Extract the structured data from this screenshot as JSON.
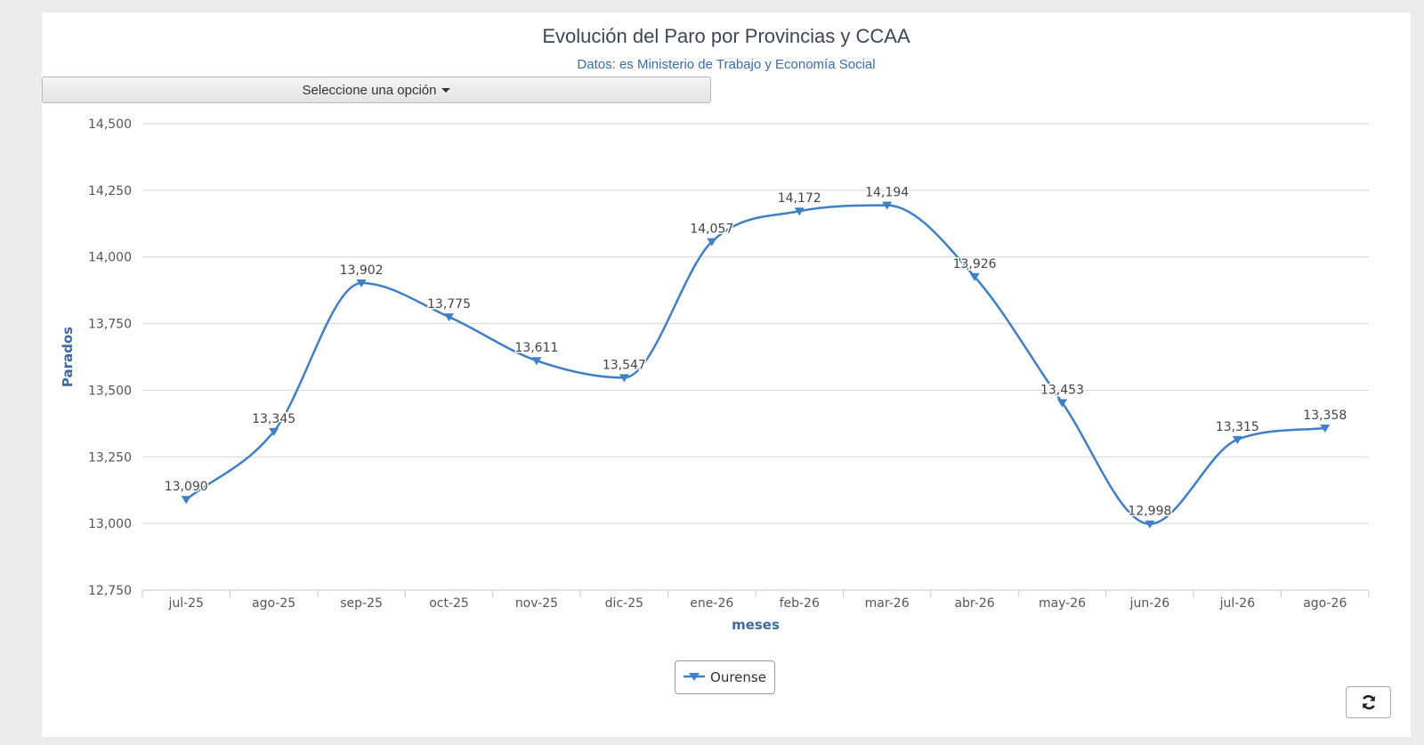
{
  "page": {
    "title": "Evolución del Paro por Provincias y CCAA",
    "subtitle": "Datos: es Ministerio de Trabajo y Economía Social"
  },
  "selector": {
    "label": "Seleccione una opción",
    "icon": "caret-down-icon"
  },
  "refresh": {
    "icon": "refresh-icon"
  },
  "colors": {
    "series": "#3f7fc6",
    "axis_title": "#3e6a9f",
    "grid": "#d4d4d4",
    "tick": "#555555"
  },
  "chart_data": {
    "type": "line",
    "smoothed": true,
    "marker": "triangle-down",
    "categories": [
      "jul-25",
      "ago-25",
      "sep-25",
      "oct-25",
      "nov-25",
      "dic-25",
      "ene-26",
      "feb-26",
      "mar-26",
      "abr-26",
      "may-26",
      "jun-26",
      "jul-26",
      "ago-26"
    ],
    "series": [
      {
        "name": "Ourense",
        "values": [
          13090,
          13345,
          13902,
          13775,
          13611,
          13547,
          14057,
          14172,
          14194,
          13926,
          13453,
          12998,
          13315,
          13358
        ],
        "labels": [
          "13,090",
          "13,345",
          "13,902",
          "13,775",
          "13,611",
          "13,547",
          "14,057",
          "14,172",
          "14,194",
          "13,926",
          "13,453",
          "12,998",
          "13,315",
          "13,358"
        ]
      }
    ],
    "xlabel": "meses",
    "ylabel": "Parados",
    "ylim": [
      12750,
      14500
    ],
    "yticks": [
      14500,
      14250,
      14000,
      13750,
      13500,
      13250,
      13000,
      12750
    ],
    "ytick_labels": [
      "14,500",
      "14,250",
      "14,000",
      "13,750",
      "13,500",
      "13,250",
      "13,000",
      "12,750"
    ],
    "grid": true,
    "legend_position": "bottom-center"
  }
}
